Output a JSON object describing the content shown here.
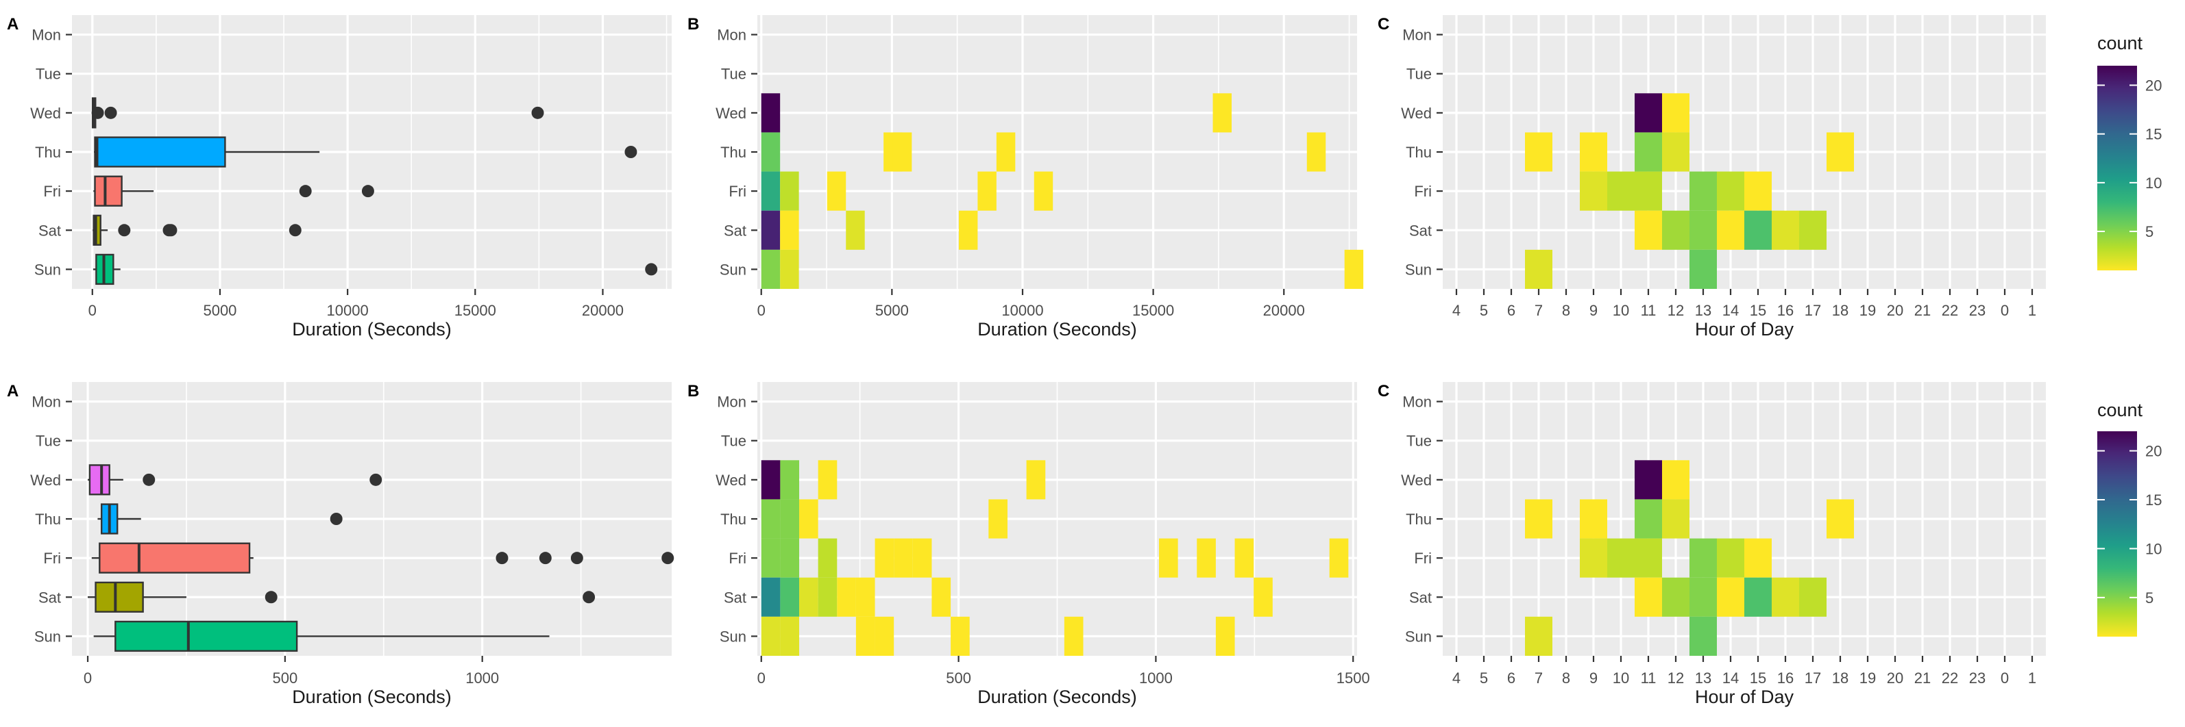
{
  "colors": {
    "panel_bg": "#EBEBEB",
    "grid": "#FFFFFF",
    "text": "#4D4D4D",
    "title": "#1A1A1A",
    "box_outline": "#333333",
    "outlier": "#333333",
    "viridis": [
      "#FDE725",
      "#B5DE2B",
      "#6ECE58",
      "#35B779",
      "#1F9E89",
      "#26828E",
      "#31688E",
      "#3E4989",
      "#482878",
      "#440154"
    ]
  },
  "legends": [
    {
      "title": "count",
      "ticks": [
        5,
        10,
        15,
        20
      ],
      "range": [
        1,
        22
      ]
    },
    {
      "title": "count",
      "ticks": [
        5,
        10,
        15,
        20
      ],
      "range": [
        1,
        22
      ]
    }
  ],
  "chart_data": [
    {
      "tag": "A",
      "type": "boxplot",
      "xlabel": "Duration (Seconds)",
      "categories": [
        "Mon",
        "Tue",
        "Wed",
        "Thu",
        "Fri",
        "Sat",
        "Sun"
      ],
      "xlim": [
        -800,
        22700
      ],
      "xticks": [
        0,
        5000,
        10000,
        15000,
        20000
      ],
      "boxes": [
        {
          "day": "Wed",
          "color": "#E76BF3",
          "q1": 10,
          "median": 40,
          "q3": 120,
          "whisker_low": 0,
          "whisker_high": 200,
          "outliers": [
            210,
            720,
            17450
          ]
        },
        {
          "day": "Thu",
          "color": "#00A9FF",
          "q1": 100,
          "median": 180,
          "q3": 5200,
          "whisker_low": 60,
          "whisker_high": 8900,
          "outliers": [
            21100
          ]
        },
        {
          "day": "Fri",
          "color": "#F8766D",
          "q1": 100,
          "median": 500,
          "q3": 1150,
          "whisker_low": 40,
          "whisker_high": 2400,
          "outliers": [
            8350,
            10800
          ]
        },
        {
          "day": "Sat",
          "color": "#A3A500",
          "q1": 50,
          "median": 130,
          "q3": 320,
          "whisker_low": 10,
          "whisker_high": 600,
          "outliers": [
            1250,
            3000,
            3080,
            7950
          ]
        },
        {
          "day": "Sun",
          "color": "#00BF7D",
          "q1": 150,
          "median": 450,
          "q3": 820,
          "whisker_low": 30,
          "whisker_high": 1100,
          "outliers": [
            21900
          ]
        }
      ]
    },
    {
      "tag": "B",
      "type": "heatmap",
      "xlabel": "Duration (Seconds)",
      "categories": [
        "Mon",
        "Tue",
        "Wed",
        "Thu",
        "Fri",
        "Sat",
        "Sun"
      ],
      "xlim": [
        -150,
        22800
      ],
      "xticks": [
        0,
        5000,
        10000,
        15000,
        20000
      ],
      "binwidth": 720,
      "cells": [
        {
          "day": "Wed",
          "x": 0,
          "count": 22
        },
        {
          "day": "Wed",
          "x": 17280,
          "count": 1
        },
        {
          "day": "Thu",
          "x": 0,
          "count": 6
        },
        {
          "day": "Thu",
          "x": 4680,
          "count": 1
        },
        {
          "day": "Thu",
          "x": 5040,
          "count": 1
        },
        {
          "day": "Thu",
          "x": 9000,
          "count": 1
        },
        {
          "day": "Thu",
          "x": 20880,
          "count": 1
        },
        {
          "day": "Fri",
          "x": 0,
          "count": 9
        },
        {
          "day": "Fri",
          "x": 720,
          "count": 3
        },
        {
          "day": "Fri",
          "x": 2520,
          "count": 1
        },
        {
          "day": "Fri",
          "x": 8280,
          "count": 1
        },
        {
          "day": "Fri",
          "x": 10440,
          "count": 1
        },
        {
          "day": "Sat",
          "x": 0,
          "count": 20
        },
        {
          "day": "Sat",
          "x": 720,
          "count": 1
        },
        {
          "day": "Sat",
          "x": 3240,
          "count": 2
        },
        {
          "day": "Sat",
          "x": 7560,
          "count": 1
        },
        {
          "day": "Sun",
          "x": 0,
          "count": 5
        },
        {
          "day": "Sun",
          "x": 720,
          "count": 2
        },
        {
          "day": "Sun",
          "x": 22320,
          "count": 1
        }
      ]
    },
    {
      "tag": "C",
      "type": "heatmap",
      "xlabel": "Hour of Day",
      "categories": [
        "Mon",
        "Tue",
        "Wed",
        "Thu",
        "Fri",
        "Sat",
        "Sun"
      ],
      "xcategories": [
        "4",
        "5",
        "6",
        "7",
        "8",
        "9",
        "10",
        "11",
        "12",
        "13",
        "14",
        "15",
        "16",
        "17",
        "18",
        "19",
        "20",
        "21",
        "22",
        "23",
        "0",
        "1"
      ],
      "cells": [
        {
          "day": "Wed",
          "hour": "11",
          "count": 22
        },
        {
          "day": "Wed",
          "hour": "12",
          "count": 1
        },
        {
          "day": "Thu",
          "hour": "7",
          "count": 1
        },
        {
          "day": "Thu",
          "hour": "9",
          "count": 1
        },
        {
          "day": "Thu",
          "hour": "11",
          "count": 5
        },
        {
          "day": "Thu",
          "hour": "12",
          "count": 2
        },
        {
          "day": "Thu",
          "hour": "18",
          "count": 1
        },
        {
          "day": "Fri",
          "hour": "9",
          "count": 2
        },
        {
          "day": "Fri",
          "hour": "10",
          "count": 3
        },
        {
          "day": "Fri",
          "hour": "11",
          "count": 3
        },
        {
          "day": "Fri",
          "hour": "13",
          "count": 5
        },
        {
          "day": "Fri",
          "hour": "14",
          "count": 3
        },
        {
          "day": "Fri",
          "hour": "15",
          "count": 1
        },
        {
          "day": "Sat",
          "hour": "11",
          "count": 1
        },
        {
          "day": "Sat",
          "hour": "12",
          "count": 4
        },
        {
          "day": "Sat",
          "hour": "13",
          "count": 5
        },
        {
          "day": "Sat",
          "hour": "14",
          "count": 1
        },
        {
          "day": "Sat",
          "hour": "15",
          "count": 7
        },
        {
          "day": "Sat",
          "hour": "16",
          "count": 2
        },
        {
          "day": "Sat",
          "hour": "17",
          "count": 3
        },
        {
          "day": "Sun",
          "hour": "7",
          "count": 2
        },
        {
          "day": "Sun",
          "hour": "13",
          "count": 6
        }
      ]
    },
    {
      "tag": "A",
      "type": "boxplot",
      "xlabel": "Duration (Seconds)",
      "categories": [
        "Mon",
        "Tue",
        "Wed",
        "Thu",
        "Fri",
        "Sat",
        "Sun"
      ],
      "xlim": [
        -40,
        1480
      ],
      "xticks": [
        0,
        500,
        1000
      ],
      "boxes": [
        {
          "day": "Wed",
          "color": "#E76BF3",
          "q1": 5,
          "median": 35,
          "q3": 55,
          "whisker_low": 0,
          "whisker_high": 90,
          "outliers": [
            155,
            730
          ]
        },
        {
          "day": "Thu",
          "color": "#00A9FF",
          "q1": 35,
          "median": 55,
          "q3": 75,
          "whisker_low": 25,
          "whisker_high": 135,
          "outliers": [
            630
          ]
        },
        {
          "day": "Fri",
          "color": "#F8766D",
          "q1": 30,
          "median": 130,
          "q3": 410,
          "whisker_low": 10,
          "whisker_high": 420,
          "outliers": [
            1050,
            1160,
            1240,
            1470
          ]
        },
        {
          "day": "Sat",
          "color": "#A3A500",
          "q1": 20,
          "median": 70,
          "q3": 140,
          "whisker_low": 0,
          "whisker_high": 250,
          "outliers": [
            465,
            1270
          ]
        },
        {
          "day": "Sun",
          "color": "#00BF7D",
          "q1": 70,
          "median": 255,
          "q3": 530,
          "whisker_low": 15,
          "whisker_high": 1170,
          "outliers": []
        }
      ]
    },
    {
      "tag": "B",
      "type": "heatmap",
      "xlabel": "Duration (Seconds)",
      "categories": [
        "Mon",
        "Tue",
        "Wed",
        "Thu",
        "Fri",
        "Sat",
        "Sun"
      ],
      "xlim": [
        -10,
        1510
      ],
      "xticks": [
        0,
        500,
        1000,
        1500
      ],
      "binwidth": 48,
      "cells": [
        {
          "day": "Wed",
          "x": 0,
          "count": 22
        },
        {
          "day": "Wed",
          "x": 48,
          "count": 5
        },
        {
          "day": "Wed",
          "x": 144,
          "count": 1
        },
        {
          "day": "Wed",
          "x": 672,
          "count": 1
        },
        {
          "day": "Thu",
          "x": 0,
          "count": 5
        },
        {
          "day": "Thu",
          "x": 48,
          "count": 5
        },
        {
          "day": "Thu",
          "x": 96,
          "count": 1
        },
        {
          "day": "Thu",
          "x": 576,
          "count": 1
        },
        {
          "day": "Fri",
          "x": 0,
          "count": 5
        },
        {
          "day": "Fri",
          "x": 48,
          "count": 5
        },
        {
          "day": "Fri",
          "x": 144,
          "count": 3
        },
        {
          "day": "Fri",
          "x": 288,
          "count": 1
        },
        {
          "day": "Fri",
          "x": 336,
          "count": 1
        },
        {
          "day": "Fri",
          "x": 384,
          "count": 1
        },
        {
          "day": "Fri",
          "x": 1008,
          "count": 1
        },
        {
          "day": "Fri",
          "x": 1104,
          "count": 1
        },
        {
          "day": "Fri",
          "x": 1200,
          "count": 1
        },
        {
          "day": "Fri",
          "x": 1440,
          "count": 1
        },
        {
          "day": "Sat",
          "x": 0,
          "count": 12
        },
        {
          "day": "Sat",
          "x": 48,
          "count": 7
        },
        {
          "day": "Sat",
          "x": 96,
          "count": 2
        },
        {
          "day": "Sat",
          "x": 144,
          "count": 3
        },
        {
          "day": "Sat",
          "x": 192,
          "count": 1
        },
        {
          "day": "Sat",
          "x": 240,
          "count": 1
        },
        {
          "day": "Sat",
          "x": 432,
          "count": 1
        },
        {
          "day": "Sat",
          "x": 1248,
          "count": 1
        },
        {
          "day": "Sun",
          "x": 0,
          "count": 2
        },
        {
          "day": "Sun",
          "x": 48,
          "count": 2
        },
        {
          "day": "Sun",
          "x": 240,
          "count": 1
        },
        {
          "day": "Sun",
          "x": 288,
          "count": 1
        },
        {
          "day": "Sun",
          "x": 480,
          "count": 1
        },
        {
          "day": "Sun",
          "x": 768,
          "count": 1
        },
        {
          "day": "Sun",
          "x": 1152,
          "count": 1
        }
      ]
    },
    {
      "tag": "C",
      "type": "heatmap",
      "xlabel": "Hour of Day",
      "categories": [
        "Mon",
        "Tue",
        "Wed",
        "Thu",
        "Fri",
        "Sat",
        "Sun"
      ],
      "xcategories": [
        "4",
        "5",
        "6",
        "7",
        "8",
        "9",
        "10",
        "11",
        "12",
        "13",
        "14",
        "15",
        "16",
        "17",
        "18",
        "19",
        "20",
        "21",
        "22",
        "23",
        "0",
        "1"
      ],
      "cells": [
        {
          "day": "Wed",
          "hour": "11",
          "count": 22
        },
        {
          "day": "Wed",
          "hour": "12",
          "count": 1
        },
        {
          "day": "Thu",
          "hour": "7",
          "count": 1
        },
        {
          "day": "Thu",
          "hour": "9",
          "count": 1
        },
        {
          "day": "Thu",
          "hour": "11",
          "count": 5
        },
        {
          "day": "Thu",
          "hour": "12",
          "count": 2
        },
        {
          "day": "Thu",
          "hour": "18",
          "count": 1
        },
        {
          "day": "Fri",
          "hour": "9",
          "count": 2
        },
        {
          "day": "Fri",
          "hour": "10",
          "count": 3
        },
        {
          "day": "Fri",
          "hour": "11",
          "count": 3
        },
        {
          "day": "Fri",
          "hour": "13",
          "count": 5
        },
        {
          "day": "Fri",
          "hour": "14",
          "count": 3
        },
        {
          "day": "Fri",
          "hour": "15",
          "count": 1
        },
        {
          "day": "Sat",
          "hour": "11",
          "count": 1
        },
        {
          "day": "Sat",
          "hour": "12",
          "count": 4
        },
        {
          "day": "Sat",
          "hour": "13",
          "count": 5
        },
        {
          "day": "Sat",
          "hour": "14",
          "count": 1
        },
        {
          "day": "Sat",
          "hour": "15",
          "count": 7
        },
        {
          "day": "Sat",
          "hour": "16",
          "count": 2
        },
        {
          "day": "Sat",
          "hour": "17",
          "count": 3
        },
        {
          "day": "Sun",
          "hour": "7",
          "count": 2
        },
        {
          "day": "Sun",
          "hour": "13",
          "count": 6
        }
      ]
    }
  ]
}
